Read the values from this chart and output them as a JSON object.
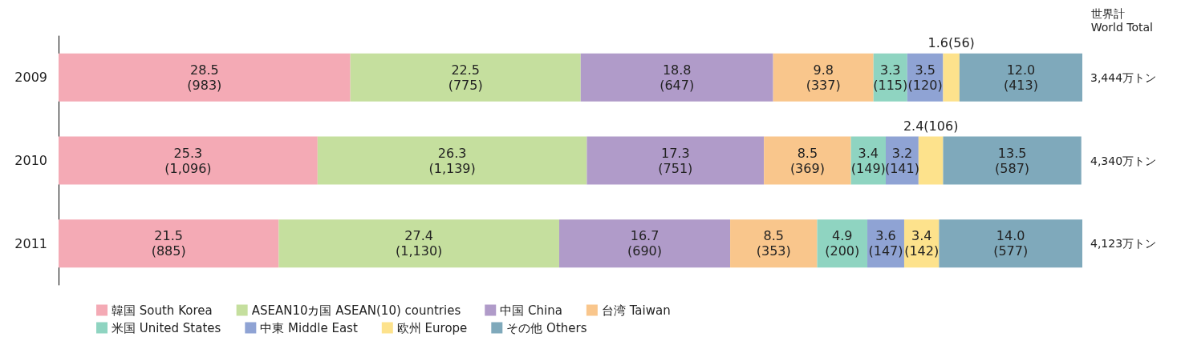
{
  "chart_data": {
    "type": "bar",
    "orientation": "horizontal",
    "stacked": true,
    "categories": [
      "2009",
      "2010",
      "2011"
    ],
    "xlim": [
      0,
      100
    ],
    "legend": "bottom left",
    "annotations": [
      "世界計\nWorld Total",
      "3,444万トン",
      "4,340万トン",
      "4,123万トン"
    ],
    "series": [
      {
        "name": "韓国 South Korea",
        "color": "#f4aab5",
        "values": [
          28.5,
          25.3,
          21.5
        ],
        "value_labels": [
          "28.5\n(983)",
          "25.3\n(1,096)",
          "21.5\n(885)"
        ]
      },
      {
        "name": "ASEAN10カ国 ASEAN(10) countries",
        "color": "#c5df9e",
        "values": [
          22.5,
          26.3,
          27.4
        ],
        "value_labels": [
          "22.5\n(775)",
          "26.3\n(1,139)",
          "27.4\n(1,130)"
        ]
      },
      {
        "name": "中国 China",
        "color": "#b09bc9",
        "values": [
          18.8,
          17.3,
          16.7
        ],
        "value_labels": [
          "18.8\n(647)",
          "17.3\n(751)",
          "16.7\n(690)"
        ]
      },
      {
        "name": "台湾 Taiwan",
        "color": "#f9c68c",
        "values": [
          9.8,
          8.5,
          8.5
        ],
        "value_labels": [
          "9.8\n(337)",
          "8.5\n(369)",
          "8.5\n(353)"
        ]
      },
      {
        "name": "米国 United States",
        "color": "#8fd4c1",
        "values": [
          3.3,
          3.4,
          4.9
        ],
        "value_labels": [
          "3.3\n(115)",
          "3.4\n(149)",
          "4.9\n(200)"
        ]
      },
      {
        "name": "中東 Middle East",
        "color": "#8fa3d4",
        "values": [
          3.5,
          3.2,
          3.6
        ],
        "value_labels": [
          "3.5\n(120)",
          "3.2\n(141)",
          "3.6\n(147)"
        ]
      },
      {
        "name": "欧州 Europe",
        "color": "#fde28c",
        "values": [
          1.6,
          2.4,
          3.4
        ],
        "value_labels": [
          "1.6(56)",
          "2.4(106)",
          "3.4\n(142)"
        ]
      },
      {
        "name": "その他 Others",
        "color": "#7fa9bb",
        "values": [
          12.0,
          13.5,
          14.0
        ],
        "value_labels": [
          "12.0\n(413)",
          "13.5\n(587)",
          "14.0\n(577)"
        ]
      }
    ]
  }
}
